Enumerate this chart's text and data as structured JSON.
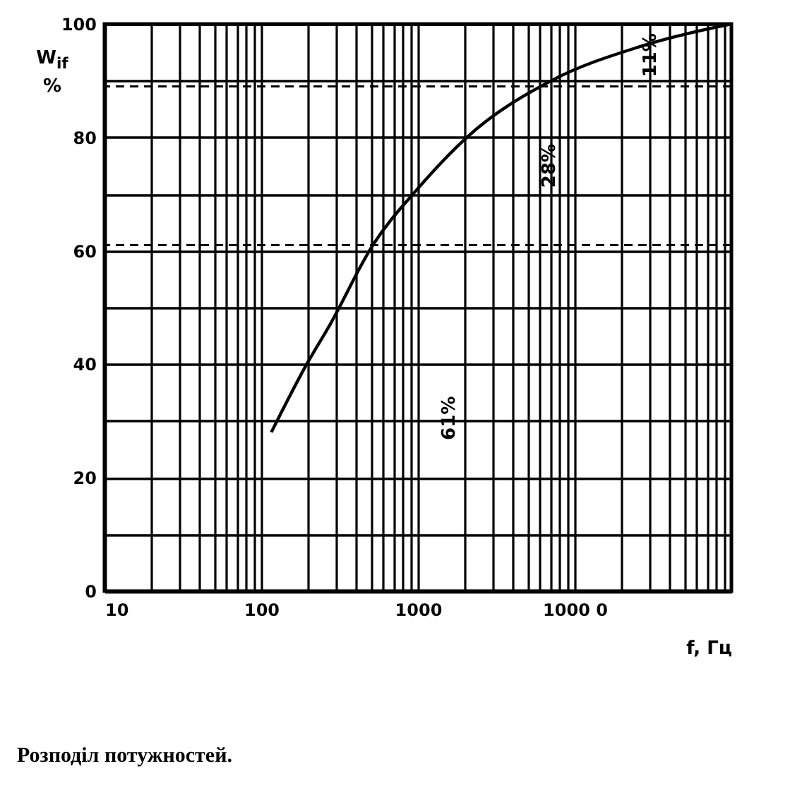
{
  "chart_data": {
    "type": "line",
    "title": "Розподіл потужностей.",
    "xlabel": "f, Гц",
    "ylabel": "W$_{if}$ %",
    "series": [
      {
        "color": "#000000",
        "x": [
          116,
          195,
          275,
          515,
          1000,
          2050,
          7100,
          26000,
          100000
        ],
        "values": [
          28,
          40,
          47,
          61,
          71,
          80,
          90,
          96,
          100
        ]
      }
    ],
    "log": "x",
    "grid": true,
    "marker": "none",
    "line_style": "solid",
    "xlim": [
      10,
      100000
    ],
    "ylim": [
      0,
      100
    ],
    "xticks": [
      10,
      {
        "value": 20,
        "label": null
      },
      {
        "value": 30,
        "label": null
      },
      {
        "value": 40,
        "label": null
      },
      {
        "value": 50,
        "label": null
      },
      {
        "value": 60,
        "label": null
      },
      {
        "value": 70,
        "label": null
      },
      {
        "value": 80,
        "label": null
      },
      {
        "value": 90,
        "label": null
      },
      100,
      {
        "value": 200,
        "label": null
      },
      {
        "value": 300,
        "label": null
      },
      {
        "value": 400,
        "label": null
      },
      {
        "value": 500,
        "label": null
      },
      {
        "value": 600,
        "label": null
      },
      {
        "value": 700,
        "label": null
      },
      {
        "value": 800,
        "label": null
      },
      {
        "value": 900,
        "label": null
      },
      1000,
      {
        "value": 2000,
        "label": null
      },
      {
        "value": 3000,
        "label": null
      },
      {
        "value": 4000,
        "label": null
      },
      {
        "value": 5000,
        "label": null
      },
      {
        "value": 6000,
        "label": null
      },
      {
        "value": 7000,
        "label": null
      },
      {
        "value": 8000,
        "label": null
      },
      {
        "value": 9000,
        "label": null
      },
      {
        "value": 10000,
        "label": "1000 0"
      },
      {
        "value": 20000,
        "label": null
      },
      {
        "value": 30000,
        "label": null
      },
      {
        "value": 40000,
        "label": null
      },
      {
        "value": 50000,
        "label": null
      },
      {
        "value": 60000,
        "label": null
      },
      {
        "value": 70000,
        "label": null
      },
      {
        "value": 80000,
        "label": null
      },
      {
        "value": 90000,
        "label": null
      }
    ],
    "yticks": [
      0,
      {
        "value": 10,
        "label": null
      },
      20,
      {
        "value": 30,
        "label": null
      },
      40,
      {
        "value": 50,
        "label": null
      },
      60,
      {
        "value": 70,
        "label": null
      },
      80,
      {
        "value": 90,
        "label": null
      },
      100
    ],
    "ref_lines": [
      {
        "axis": "y",
        "value": 61,
        "line_style": "dashed"
      },
      {
        "axis": "y",
        "value": 89,
        "line_style": "dashed"
      }
    ],
    "annotations": [
      "61%",
      "28%",
      "11%"
    ]
  }
}
